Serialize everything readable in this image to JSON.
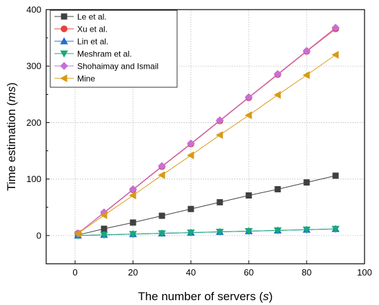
{
  "chart_data": {
    "type": "line",
    "xlabel": "The number of servers (",
    "xlabel_var": "s",
    "xlabel_end": ")",
    "ylabel": "Time estimation (",
    "ylabel_unit": "ms",
    "ylabel_end": ")",
    "xlim": [
      -10,
      100
    ],
    "ylim": [
      -50,
      400
    ],
    "xticks": [
      0,
      20,
      40,
      60,
      80,
      100
    ],
    "yticks": [
      0,
      100,
      200,
      300,
      400
    ],
    "grid": true,
    "legend_position": "top-left",
    "x": [
      1,
      10,
      20,
      30,
      40,
      50,
      60,
      70,
      80,
      90
    ],
    "series": [
      {
        "name": "Le et al.",
        "color": "#404040",
        "marker": "square",
        "values": [
          1,
          12,
          23,
          35,
          47,
          59,
          71,
          82,
          94,
          106
        ]
      },
      {
        "name": "Xu et al.",
        "color": "#e8403a",
        "marker": "circle",
        "values": [
          4,
          40,
          81,
          122,
          162,
          203,
          244,
          285,
          326,
          366
        ]
      },
      {
        "name": "Lin et al.",
        "color": "#1f6fd1",
        "marker": "triangle-up",
        "values": [
          0.1,
          1.3,
          2.6,
          3.9,
          5.2,
          6.5,
          7.8,
          9.1,
          10.4,
          11.7
        ]
      },
      {
        "name": "Meshram et al.",
        "color": "#1aa87a",
        "marker": "triangle-down",
        "values": [
          0.1,
          1.3,
          2.6,
          3.9,
          5.2,
          6.5,
          7.8,
          9.1,
          10.4,
          11.7
        ]
      },
      {
        "name": "Shohaimay and Ismail",
        "color": "#c86fd6",
        "marker": "diamond",
        "values": [
          4,
          41,
          82,
          123,
          163,
          204,
          245,
          286,
          327,
          368
        ]
      },
      {
        "name": "Mine",
        "color": "#d99a14",
        "marker": "triangle-left",
        "values": [
          3.5,
          36,
          71,
          107,
          142,
          178,
          213,
          249,
          284,
          320
        ]
      }
    ]
  }
}
